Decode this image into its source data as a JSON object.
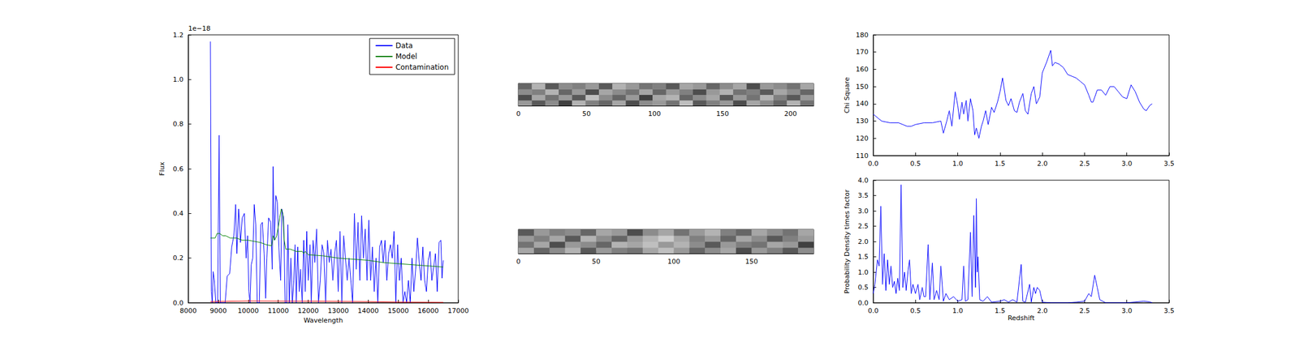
{
  "chart_data": [
    {
      "type": "line",
      "xlabel": "Wavelength",
      "ylabel": "Flux",
      "annotations": [
        "1e−18"
      ],
      "xlim": [
        8000,
        17000
      ],
      "xticks": [
        8000,
        9000,
        10000,
        11000,
        12000,
        13000,
        14000,
        15000,
        16000,
        17000
      ],
      "ylim": [
        0,
        1.2
      ],
      "yticks": [
        {
          "value": 0,
          "label": "0.0"
        },
        {
          "value": 0.2,
          "label": "0.2"
        },
        {
          "value": 0.4,
          "label": "0.4"
        },
        {
          "value": 0.6,
          "label": "0.6"
        },
        {
          "value": 0.8,
          "label": "0.8"
        },
        {
          "value": 1.0,
          "label": "1.0"
        },
        {
          "value": 1.2,
          "label": "1.2"
        }
      ],
      "legend": "upper right",
      "grid": false,
      "series": [
        {
          "name": "Data",
          "color": "#0000ff",
          "x": [
            8740,
            8770,
            8800,
            8830,
            8870,
            8920,
            8980,
            9030,
            9070,
            9150,
            9230,
            9300,
            9380,
            9450,
            9520,
            9580,
            9620,
            9680,
            9740,
            9800,
            9870,
            9930,
            9980,
            10020,
            10060,
            10100,
            10150,
            10200,
            10250,
            10300,
            10370,
            10420,
            10470,
            10530,
            10580,
            10620,
            10680,
            10750,
            10800,
            10830,
            10870,
            10920,
            10970,
            11020,
            11080,
            11120,
            11180,
            11230,
            11280,
            11320,
            11370,
            11420,
            11470,
            11520,
            11560,
            11600,
            11650,
            11700,
            11740,
            11800,
            11850,
            11900,
            11950,
            12000,
            12060,
            12100,
            12160,
            12220,
            12280,
            12340,
            12400,
            12460,
            12520,
            12580,
            12640,
            12700,
            12760,
            12820,
            12880,
            12940,
            13000,
            13060,
            13120,
            13180,
            13240,
            13300,
            13360,
            13420,
            13480,
            13540,
            13600,
            13660,
            13720,
            13780,
            13840,
            13900,
            13960,
            14020,
            14080,
            14140,
            14200,
            14260,
            14320,
            14380,
            14440,
            14500,
            14560,
            14620,
            14680,
            14740,
            14800,
            14860,
            14920,
            14980,
            15040,
            15100,
            15160,
            15220,
            15280,
            15340,
            15400,
            15460,
            15520,
            15580,
            15640,
            15700,
            15760,
            15820,
            15880,
            15940,
            16000,
            16060,
            16120,
            16180,
            16240,
            16300,
            16360,
            16420,
            16460,
            16500
          ],
          "values": [
            1.17,
            0.05,
            0.0,
            0.14,
            0.1,
            0.0,
            0.0,
            0.75,
            0.0,
            0.0,
            0.0,
            0.12,
            0.13,
            0.25,
            0.3,
            0.44,
            0.22,
            0.42,
            0.27,
            0.38,
            0.4,
            0.2,
            0.3,
            0.05,
            0.0,
            0.17,
            0.2,
            0.44,
            0.35,
            0.0,
            0.0,
            0.35,
            0.36,
            0.22,
            0.02,
            0.2,
            0.38,
            0.36,
            0.15,
            0.61,
            0.28,
            0.48,
            0.45,
            0.25,
            0.1,
            0.42,
            0.38,
            0.0,
            0.0,
            0.35,
            0.0,
            0.2,
            0.0,
            0.1,
            0.26,
            0.0,
            0.25,
            0.05,
            0.15,
            0.0,
            0.28,
            0.05,
            0.32,
            0.1,
            0.26,
            0.0,
            0.28,
            0.18,
            0.33,
            0.0,
            0.1,
            0.26,
            0.22,
            0.0,
            0.28,
            0.18,
            0.24,
            0.1,
            0.22,
            0.28,
            0.05,
            0.32,
            0.0,
            0.3,
            0.2,
            0.1,
            0.2,
            0.1,
            0.0,
            0.4,
            0.15,
            0.36,
            0.1,
            0.39,
            0.2,
            0.33,
            0.1,
            0.37,
            0.1,
            0.25,
            0.05,
            0.2,
            0.0,
            0.25,
            0.28,
            0.18,
            0.28,
            0.1,
            0.22,
            0.26,
            0.2,
            0.32,
            0.0,
            0.26,
            0.1,
            0.2,
            0.0,
            0.05,
            0.0,
            0.1,
            0.0,
            0.2,
            0.05,
            0.15,
            0.29,
            0.18,
            0.1,
            0.25,
            0.1,
            0.05,
            0.19,
            0.23,
            0.1,
            0.16,
            0.22,
            0.05,
            0.27,
            0.28,
            0.11,
            0.19
          ]
        },
        {
          "name": "Model",
          "color": "#008000",
          "x": [
            8740,
            8900,
            8960,
            9050,
            9150,
            9250,
            9400,
            9600,
            9800,
            10000,
            10200,
            10400,
            10600,
            10780,
            10830,
            10880,
            10950,
            11050,
            11100,
            11150,
            11200,
            11250,
            11400,
            11600,
            11800,
            11850,
            11900,
            12000,
            12500,
            13000,
            13500,
            14000,
            14500,
            15000,
            15500,
            16000,
            16500
          ],
          "values": [
            0.29,
            0.29,
            0.31,
            0.31,
            0.3,
            0.3,
            0.29,
            0.29,
            0.28,
            0.28,
            0.275,
            0.27,
            0.26,
            0.255,
            0.3,
            0.28,
            0.3,
            0.38,
            0.42,
            0.4,
            0.28,
            0.24,
            0.24,
            0.23,
            0.23,
            0.22,
            0.23,
            0.215,
            0.21,
            0.2,
            0.195,
            0.19,
            0.18,
            0.175,
            0.17,
            0.165,
            0.16
          ]
        },
        {
          "name": "Contamination",
          "color": "#ff0000",
          "x": [
            8740,
            10000,
            12000,
            14000,
            15000,
            16500
          ],
          "values": [
            0.005,
            0.008,
            0.007,
            0.005,
            0.003,
            0.002
          ]
        }
      ]
    },
    {
      "type": "heatmap",
      "tick_labels": "x",
      "xlim": [
        0,
        217
      ],
      "xticks": [
        0,
        50,
        100,
        150,
        200
      ],
      "ylim": [
        0,
        16
      ],
      "zlim": [
        -1,
        1
      ],
      "cells": [
        [
          0.2,
          -0.3,
          0.1,
          -0.5,
          0.4,
          0.0,
          -0.2,
          0.3,
          -0.4,
          0.1,
          0.2,
          -0.1,
          0.5,
          -0.3,
          0.0,
          0.2,
          -0.4,
          0.3,
          0.1,
          -0.2,
          0.4,
          -0.1
        ],
        [
          -0.4,
          0.3,
          -0.1,
          0.2,
          -0.3,
          0.5,
          0.1,
          -0.2,
          0.2,
          -0.5,
          0.3,
          0.4,
          -0.2,
          0.1,
          0.3,
          -0.3,
          0.2,
          -0.1,
          0.4,
          0.0,
          -0.3,
          0.2
        ],
        [
          0.1,
          0.0,
          0.4,
          -0.2,
          0.2,
          -0.4,
          0.3,
          0.1,
          -0.1,
          0.3,
          -0.2,
          0.2,
          0.0,
          -0.4,
          0.2,
          0.4,
          -0.1,
          0.0,
          -0.3,
          0.3,
          0.1,
          -0.2
        ],
        [
          -0.2,
          0.4,
          -0.3,
          0.1,
          0.0,
          0.2,
          -0.3,
          0.4,
          0.2,
          -0.1,
          0.0,
          -0.3,
          0.3,
          0.2,
          -0.2,
          0.1,
          0.3,
          -0.4,
          0.2,
          0.1,
          -0.1,
          0.3
        ]
      ]
    },
    {
      "type": "heatmap",
      "tick_labels": "x",
      "xlim": [
        0,
        190
      ],
      "xticks": [
        0,
        50,
        100,
        150
      ],
      "ylim": [
        0,
        16
      ],
      "zlim": [
        -1,
        1
      ],
      "cells": [
        [
          0.3,
          -0.2,
          0.1,
          0.4,
          -0.3,
          0.2,
          0.0,
          -0.1,
          0.3,
          0.5,
          0.2,
          -0.2,
          0.1,
          0.3,
          -0.4,
          0.2,
          0.0,
          -0.3,
          0.1
        ],
        [
          -0.1,
          0.3,
          -0.4,
          0.2,
          0.1,
          -0.2,
          0.4,
          0.3,
          0.5,
          0.2,
          0.4,
          0.1,
          -0.3,
          0.2,
          0.0,
          -0.1,
          0.3,
          0.2,
          -0.5
        ],
        [
          0.2,
          0.0,
          0.3,
          -0.3,
          0.4,
          0.1,
          -0.2,
          0.2,
          0.4,
          0.6,
          0.3,
          0.0,
          0.2,
          -0.2,
          0.3,
          0.1,
          -0.3,
          0.0,
          0.2
        ],
        [
          -0.3,
          0.2,
          0.0,
          0.1,
          -0.2,
          0.3,
          0.2,
          -0.4,
          0.1,
          0.3,
          -0.1,
          0.2,
          0.4,
          0.0,
          -0.2,
          0.3,
          0.1,
          -0.1,
          0.3
        ]
      ]
    },
    {
      "type": "line",
      "ylabel": "Chi Square",
      "xlim": [
        0,
        3.5
      ],
      "xticks": [
        {
          "value": 0,
          "label": "0.0"
        },
        {
          "value": 0.5,
          "label": "0.5"
        },
        {
          "value": 1,
          "label": "1.0"
        },
        {
          "value": 1.5,
          "label": "1.5"
        },
        {
          "value": 2,
          "label": "2.0"
        },
        {
          "value": 2.5,
          "label": "2.5"
        },
        {
          "value": 3,
          "label": "3.0"
        },
        {
          "value": 3.5,
          "label": "3.5"
        }
      ],
      "ylim": [
        110,
        180
      ],
      "yticks": [
        110,
        120,
        130,
        140,
        150,
        160,
        170,
        180
      ],
      "grid": false,
      "series": [
        {
          "color": "#0000ff",
          "x": [
            0,
            0.05,
            0.1,
            0.2,
            0.3,
            0.35,
            0.4,
            0.45,
            0.5,
            0.6,
            0.7,
            0.8,
            0.83,
            0.87,
            0.9,
            0.93,
            0.97,
            1.0,
            1.02,
            1.05,
            1.07,
            1.1,
            1.12,
            1.15,
            1.18,
            1.2,
            1.22,
            1.25,
            1.28,
            1.3,
            1.33,
            1.36,
            1.4,
            1.43,
            1.47,
            1.5,
            1.53,
            1.57,
            1.6,
            1.63,
            1.67,
            1.7,
            1.73,
            1.77,
            1.8,
            1.83,
            1.87,
            1.9,
            1.93,
            1.97,
            2.0,
            2.05,
            2.1,
            2.12,
            2.15,
            2.2,
            2.25,
            2.3,
            2.35,
            2.4,
            2.45,
            2.5,
            2.55,
            2.58,
            2.6,
            2.65,
            2.7,
            2.75,
            2.8,
            2.85,
            2.9,
            2.95,
            3.0,
            3.05,
            3.1,
            3.15,
            3.2,
            3.23,
            3.27,
            3.3
          ],
          "values": [
            134,
            132,
            130,
            129,
            129,
            128,
            127,
            127,
            128,
            129,
            129,
            130,
            123,
            130,
            136,
            127,
            147,
            139,
            131,
            141,
            134,
            142,
            130,
            143,
            136,
            122,
            126,
            120,
            127,
            130,
            136,
            128,
            138,
            135,
            141,
            147,
            155,
            142,
            139,
            143,
            136,
            135,
            141,
            146,
            136,
            134,
            146,
            150,
            140,
            144,
            158,
            164,
            171,
            162,
            164,
            163,
            161,
            157,
            156,
            155,
            153,
            151,
            145,
            141,
            141,
            148,
            148,
            145,
            150,
            150,
            147,
            144,
            143,
            151,
            147,
            141,
            137,
            136,
            139,
            140
          ]
        }
      ]
    },
    {
      "type": "line",
      "xlabel": "Redshift",
      "ylabel": "Probability Density times factor",
      "xlim": [
        0,
        3.5
      ],
      "xticks": [
        {
          "value": 0,
          "label": "0.0"
        },
        {
          "value": 0.5,
          "label": "0.5"
        },
        {
          "value": 1,
          "label": "1.0"
        },
        {
          "value": 1.5,
          "label": "1.5"
        },
        {
          "value": 2,
          "label": "2.0"
        },
        {
          "value": 2.5,
          "label": "2.5"
        },
        {
          "value": 3,
          "label": "3.0"
        },
        {
          "value": 3.5,
          "label": "3.5"
        }
      ],
      "ylim": [
        0,
        4
      ],
      "yticks": [
        {
          "value": 0,
          "label": "0.0"
        },
        {
          "value": 0.5,
          "label": "0.5"
        },
        {
          "value": 1,
          "label": "1.0"
        },
        {
          "value": 1.5,
          "label": "1.5"
        },
        {
          "value": 2,
          "label": "2.0"
        },
        {
          "value": 2.5,
          "label": "2.5"
        },
        {
          "value": 3,
          "label": "3.0"
        },
        {
          "value": 3.5,
          "label": "3.5"
        },
        {
          "value": 4,
          "label": "4.0"
        }
      ],
      "grid": false,
      "series": [
        {
          "color": "#0000ff",
          "x": [
            0,
            0.02,
            0.05,
            0.07,
            0.09,
            0.11,
            0.13,
            0.15,
            0.17,
            0.19,
            0.21,
            0.23,
            0.25,
            0.27,
            0.29,
            0.31,
            0.33,
            0.35,
            0.37,
            0.39,
            0.41,
            0.43,
            0.45,
            0.47,
            0.5,
            0.53,
            0.55,
            0.58,
            0.6,
            0.62,
            0.65,
            0.67,
            0.7,
            0.72,
            0.75,
            0.78,
            0.8,
            0.83,
            0.86,
            0.9,
            0.95,
            1.0,
            1.05,
            1.07,
            1.09,
            1.12,
            1.15,
            1.17,
            1.19,
            1.21,
            1.22,
            1.23,
            1.24,
            1.26,
            1.3,
            1.35,
            1.4,
            1.5,
            1.55,
            1.6,
            1.65,
            1.7,
            1.75,
            1.77,
            1.8,
            1.85,
            1.87,
            1.9,
            1.92,
            1.94,
            1.97,
            2.0,
            2.1,
            2.3,
            2.4,
            2.5,
            2.55,
            2.58,
            2.62,
            2.65,
            2.68,
            2.75,
            3.0,
            3.2,
            3.27,
            3.3
          ],
          "values": [
            0.3,
            0.6,
            1.4,
            1.2,
            3.15,
            0.6,
            1.6,
            0.4,
            1.4,
            0.6,
            1.2,
            0.5,
            0.7,
            0.3,
            0.8,
            0.4,
            3.85,
            0.5,
            1.0,
            0.4,
            1.0,
            1.4,
            0.3,
            0.6,
            0.3,
            0.6,
            0.1,
            0.5,
            0.2,
            0.2,
            1.9,
            0.1,
            1.3,
            0.1,
            0.4,
            0.1,
            1.2,
            0.05,
            0.3,
            0.1,
            0.2,
            0.05,
            0.1,
            1.2,
            0.05,
            0.1,
            2.3,
            0.2,
            2.85,
            0.5,
            3.4,
            1.0,
            1.5,
            0.1,
            0.05,
            0.2,
            0.02,
            0.05,
            0.1,
            0.02,
            0.1,
            0.02,
            1.25,
            0.05,
            0.02,
            0.6,
            0.02,
            0.5,
            0.3,
            0.5,
            0.4,
            0.02,
            0.0,
            0.0,
            0.02,
            0.05,
            0.3,
            0.2,
            0.9,
            0.5,
            0.1,
            0.0,
            0.0,
            0.05,
            0.03,
            0.0
          ]
        }
      ]
    }
  ]
}
